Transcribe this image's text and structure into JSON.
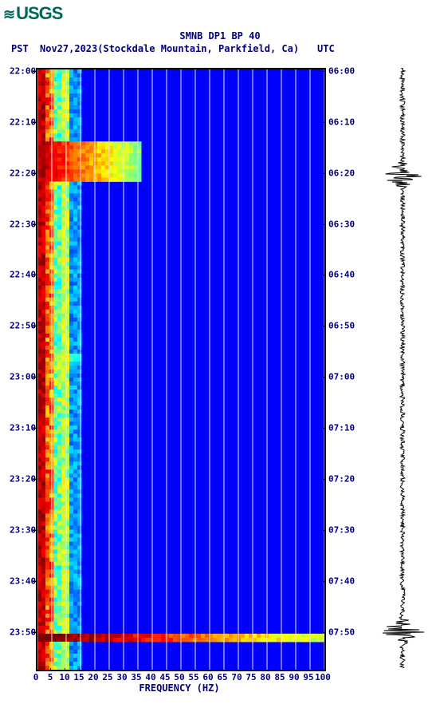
{
  "logo_text": "USGS",
  "title": "SMNB DP1 BP 40",
  "timezone_left": "PST",
  "date_station": "Nov27,2023(Stockdale Mountain, Parkfield, Ca)",
  "timezone_right": "UTC",
  "x_axis_title": "FREQUENCY (HZ)",
  "spectrogram": {
    "type": "heatmap",
    "xlim": [
      0,
      100
    ],
    "ylim_minutes": [
      0,
      120
    ],
    "x_ticks": [
      0,
      5,
      10,
      15,
      20,
      25,
      30,
      35,
      40,
      45,
      50,
      55,
      60,
      65,
      70,
      75,
      80,
      85,
      90,
      95,
      100
    ],
    "y_ticks_left": [
      "22:00",
      "22:10",
      "22:20",
      "22:30",
      "22:40",
      "22:50",
      "23:00",
      "23:10",
      "23:20",
      "23:30",
      "23:40",
      "23:50"
    ],
    "y_ticks_right": [
      "06:00",
      "06:10",
      "06:20",
      "06:30",
      "06:40",
      "06:50",
      "07:00",
      "07:10",
      "07:20",
      "07:30",
      "07:40",
      "07:50"
    ],
    "y_tick_positions_pct": [
      0.5,
      9.0,
      17.5,
      26.0,
      34.5,
      43.0,
      51.5,
      60.0,
      68.5,
      77.0,
      85.5,
      94.0
    ],
    "colormap": [
      "#00007f",
      "#0000ff",
      "#007fff",
      "#00ffff",
      "#7fff7f",
      "#ffff00",
      "#ff7f00",
      "#ff0000",
      "#7f0000"
    ],
    "background_color": "#0000ff",
    "low_freq_band_width_pct": 10,
    "event_bands_pct": [
      {
        "start": 11.5,
        "end": 18.5,
        "intensity": 0.9,
        "width_pct": 35
      },
      {
        "start": 47.0,
        "end": 48.0,
        "intensity": 0.6,
        "width_pct": 15
      },
      {
        "start": 93.5,
        "end": 95.0,
        "intensity": 1.0,
        "width_pct": 100
      }
    ]
  },
  "seismogram": {
    "baseline_x": 35,
    "trace_color": "#000000",
    "background_color": "#ffffff",
    "events": [
      {
        "time_pct": 18.0,
        "amplitude": 28
      },
      {
        "time_pct": 94.0,
        "amplitude": 30
      }
    ],
    "noise_amplitude": 3
  },
  "colors": {
    "text": "#000080",
    "logo": "#00665a",
    "border": "#000000",
    "grid": "#e0e0e0"
  },
  "fonts": {
    "title_size": 12,
    "label_size": 11,
    "logo_size": 22
  }
}
